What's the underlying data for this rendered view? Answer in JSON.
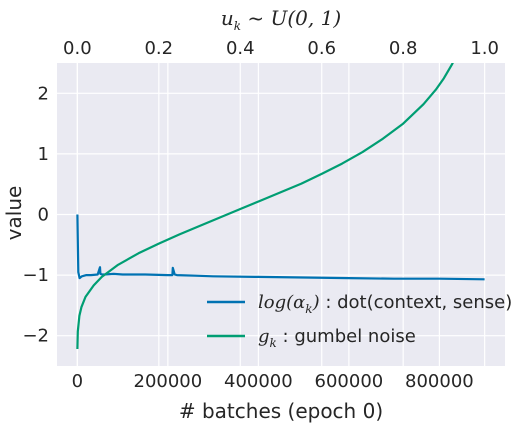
{
  "chart_data": {
    "type": "line",
    "title": "",
    "xlabel": "# batches (epoch 0)",
    "ylabel": "value",
    "top_xlabel": {
      "main": "u",
      "sub": "k",
      "rest": " ~ U(0, 1)"
    },
    "xlim": [
      -45000,
      945000
    ],
    "ylim": [
      -2.5,
      2.5
    ],
    "top_xlim": [
      -0.05,
      1.05
    ],
    "x_ticks": [
      0,
      200000,
      400000,
      600000,
      800000
    ],
    "x_tick_labels": [
      "0",
      "200000",
      "400000",
      "600000",
      "800000"
    ],
    "y_ticks": [
      -2,
      -1,
      0,
      1,
      2
    ],
    "y_tick_labels": [
      "−2",
      "−1",
      "0",
      "1",
      "2"
    ],
    "top_x_ticks": [
      0.0,
      0.2,
      0.4,
      0.6,
      0.8,
      1.0
    ],
    "top_x_tick_labels": [
      "0.0",
      "0.2",
      "0.4",
      "0.6",
      "0.8",
      "1.0"
    ],
    "grid": true,
    "legend_position": "lower-right",
    "series": [
      {
        "name": "log(α_k) : dot(context, sense)",
        "legend_math": "log(α",
        "legend_sub": "k",
        "legend_close": ")",
        "legend_rest": " : dot(context, sense)",
        "color": "#0072b2",
        "axis": "bottom",
        "x": [
          0,
          2000,
          5000,
          10000,
          20000,
          30000,
          45000,
          50000,
          51000,
          55000,
          60000,
          80000,
          100000,
          150000,
          200000,
          210000,
          211000,
          215000,
          220000,
          260000,
          300000,
          400000,
          500000,
          600000,
          700000,
          800000,
          900000
        ],
        "y": [
          0.0,
          -0.95,
          -1.05,
          -1.02,
          -1.0,
          -1.0,
          -0.99,
          -0.87,
          -0.98,
          -0.99,
          -0.99,
          -0.98,
          -0.99,
          -0.99,
          -1.0,
          -1.0,
          -0.88,
          -0.99,
          -1.0,
          -1.01,
          -1.02,
          -1.03,
          -1.04,
          -1.05,
          -1.06,
          -1.06,
          -1.07
        ]
      },
      {
        "name": "g_k : gumbel noise",
        "legend_math": "g",
        "legend_sub": "k",
        "legend_close": "",
        "legend_rest": " : gumbel noise",
        "color": "#009e73",
        "axis": "top",
        "x": [
          0.0001,
          0.001,
          0.005,
          0.01,
          0.02,
          0.04,
          0.06,
          0.08,
          0.1,
          0.15,
          0.2,
          0.25,
          0.3,
          0.35,
          0.4,
          0.45,
          0.5,
          0.55,
          0.6,
          0.65,
          0.7,
          0.75,
          0.8,
          0.85,
          0.88,
          0.9,
          0.92,
          0.935
        ],
        "y": [
          -2.22,
          -1.93,
          -1.67,
          -1.53,
          -1.36,
          -1.17,
          -1.03,
          -0.93,
          -0.83,
          -0.64,
          -0.48,
          -0.33,
          -0.19,
          -0.05,
          0.09,
          0.23,
          0.37,
          0.51,
          0.67,
          0.84,
          1.03,
          1.25,
          1.5,
          1.82,
          2.06,
          2.25,
          2.48,
          2.69
        ]
      }
    ]
  }
}
